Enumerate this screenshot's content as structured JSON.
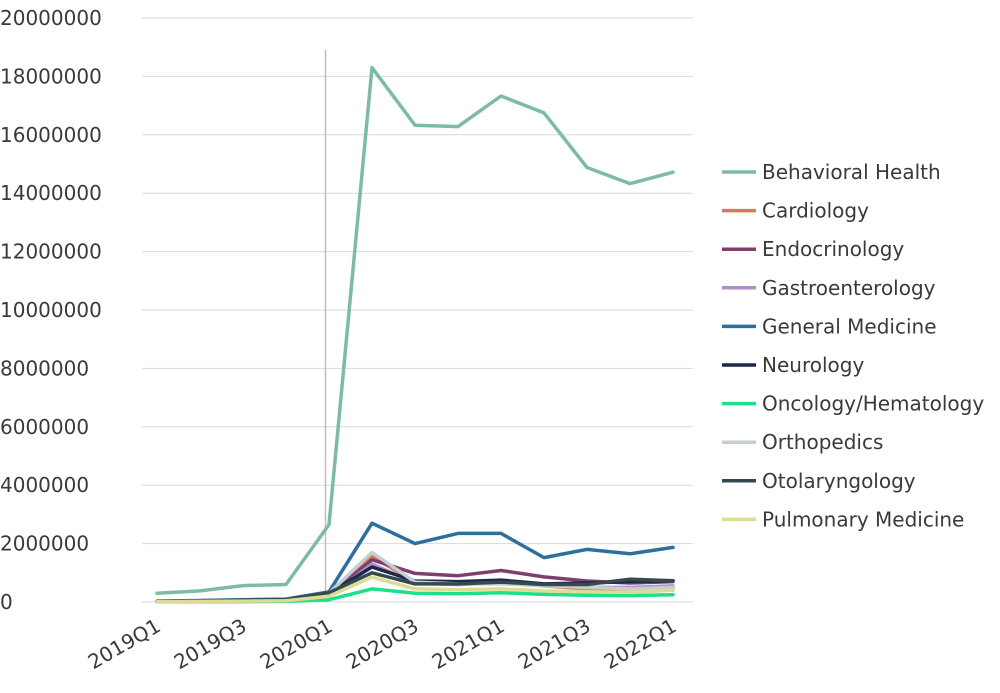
{
  "chart_data": {
    "type": "line",
    "title": "",
    "xlabel": "",
    "ylabel": "",
    "ylim": [
      0,
      20000000
    ],
    "y_ticks": [
      0,
      2000000,
      4000000,
      6000000,
      8000000,
      10000000,
      12000000,
      14000000,
      16000000,
      18000000,
      20000000
    ],
    "y_tick_labels": [
      "0",
      "2000000",
      "4000000",
      "6000000",
      "8000000",
      "10000000",
      "12000000",
      "14000000",
      "16000000",
      "18000000",
      "20000000"
    ],
    "categories": [
      "2019Q1",
      "2019Q2",
      "2019Q3",
      "2019Q4",
      "2020Q1",
      "2020Q2",
      "2020Q3",
      "2020Q4",
      "2021Q1",
      "2021Q2",
      "2021Q3",
      "2021Q4",
      "2022Q1"
    ],
    "x_tick_labels": [
      "2019Q1",
      "",
      "2019Q3",
      "",
      "2020Q1",
      "",
      "2020Q3",
      "",
      "2021Q1",
      "",
      "2021Q3",
      "",
      "2022Q1"
    ],
    "reference_line_category": "2020Q1",
    "grid": true,
    "legend_position": "right",
    "series": [
      {
        "name": "Behavioral Health",
        "color": "#7dbba7",
        "values": [
          300000,
          380000,
          560000,
          600000,
          2650000,
          18300000,
          16330000,
          16280000,
          17330000,
          16750000,
          14880000,
          14330000,
          14720000
        ]
      },
      {
        "name": "Cardiology",
        "color": "#d9785b",
        "values": [
          20000,
          30000,
          40000,
          60000,
          250000,
          1550000,
          700000,
          650000,
          700000,
          550000,
          450000,
          400000,
          450000
        ]
      },
      {
        "name": "Endocrinology",
        "color": "#7d3f6e",
        "values": [
          20000,
          30000,
          40000,
          60000,
          250000,
          1450000,
          980000,
          900000,
          1080000,
          860000,
          720000,
          650000,
          700000
        ]
      },
      {
        "name": "Gastroenterology",
        "color": "#b08fc7",
        "values": [
          10000,
          20000,
          30000,
          50000,
          200000,
          1300000,
          650000,
          600000,
          650000,
          550000,
          500000,
          500000,
          550000
        ]
      },
      {
        "name": "General Medicine",
        "color": "#2e6f9e",
        "values": [
          30000,
          50000,
          80000,
          100000,
          350000,
          2700000,
          2000000,
          2350000,
          2350000,
          1520000,
          1800000,
          1650000,
          1870000
        ]
      },
      {
        "name": "Neurology",
        "color": "#1b2a4a",
        "values": [
          20000,
          30000,
          50000,
          70000,
          300000,
          1200000,
          720000,
          700000,
          750000,
          620000,
          650000,
          700000,
          730000
        ]
      },
      {
        "name": "Oncology/Hematology",
        "color": "#1de08a",
        "values": [
          5000,
          10000,
          15000,
          20000,
          80000,
          450000,
          300000,
          280000,
          320000,
          260000,
          230000,
          220000,
          250000
        ]
      },
      {
        "name": "Orthopedics",
        "color": "#c5cfd1",
        "values": [
          20000,
          30000,
          40000,
          60000,
          300000,
          1700000,
          680000,
          620000,
          620000,
          560000,
          500000,
          450000,
          500000
        ]
      },
      {
        "name": "Otolaryngology",
        "color": "#354a4f",
        "values": [
          20000,
          40000,
          60000,
          80000,
          320000,
          1000000,
          620000,
          620000,
          680000,
          600000,
          600000,
          780000,
          730000
        ]
      },
      {
        "name": "Pulmonary Medicine",
        "color": "#dcdc94",
        "values": [
          10000,
          20000,
          30000,
          40000,
          200000,
          850000,
          450000,
          420000,
          450000,
          380000,
          350000,
          330000,
          400000
        ]
      }
    ]
  }
}
